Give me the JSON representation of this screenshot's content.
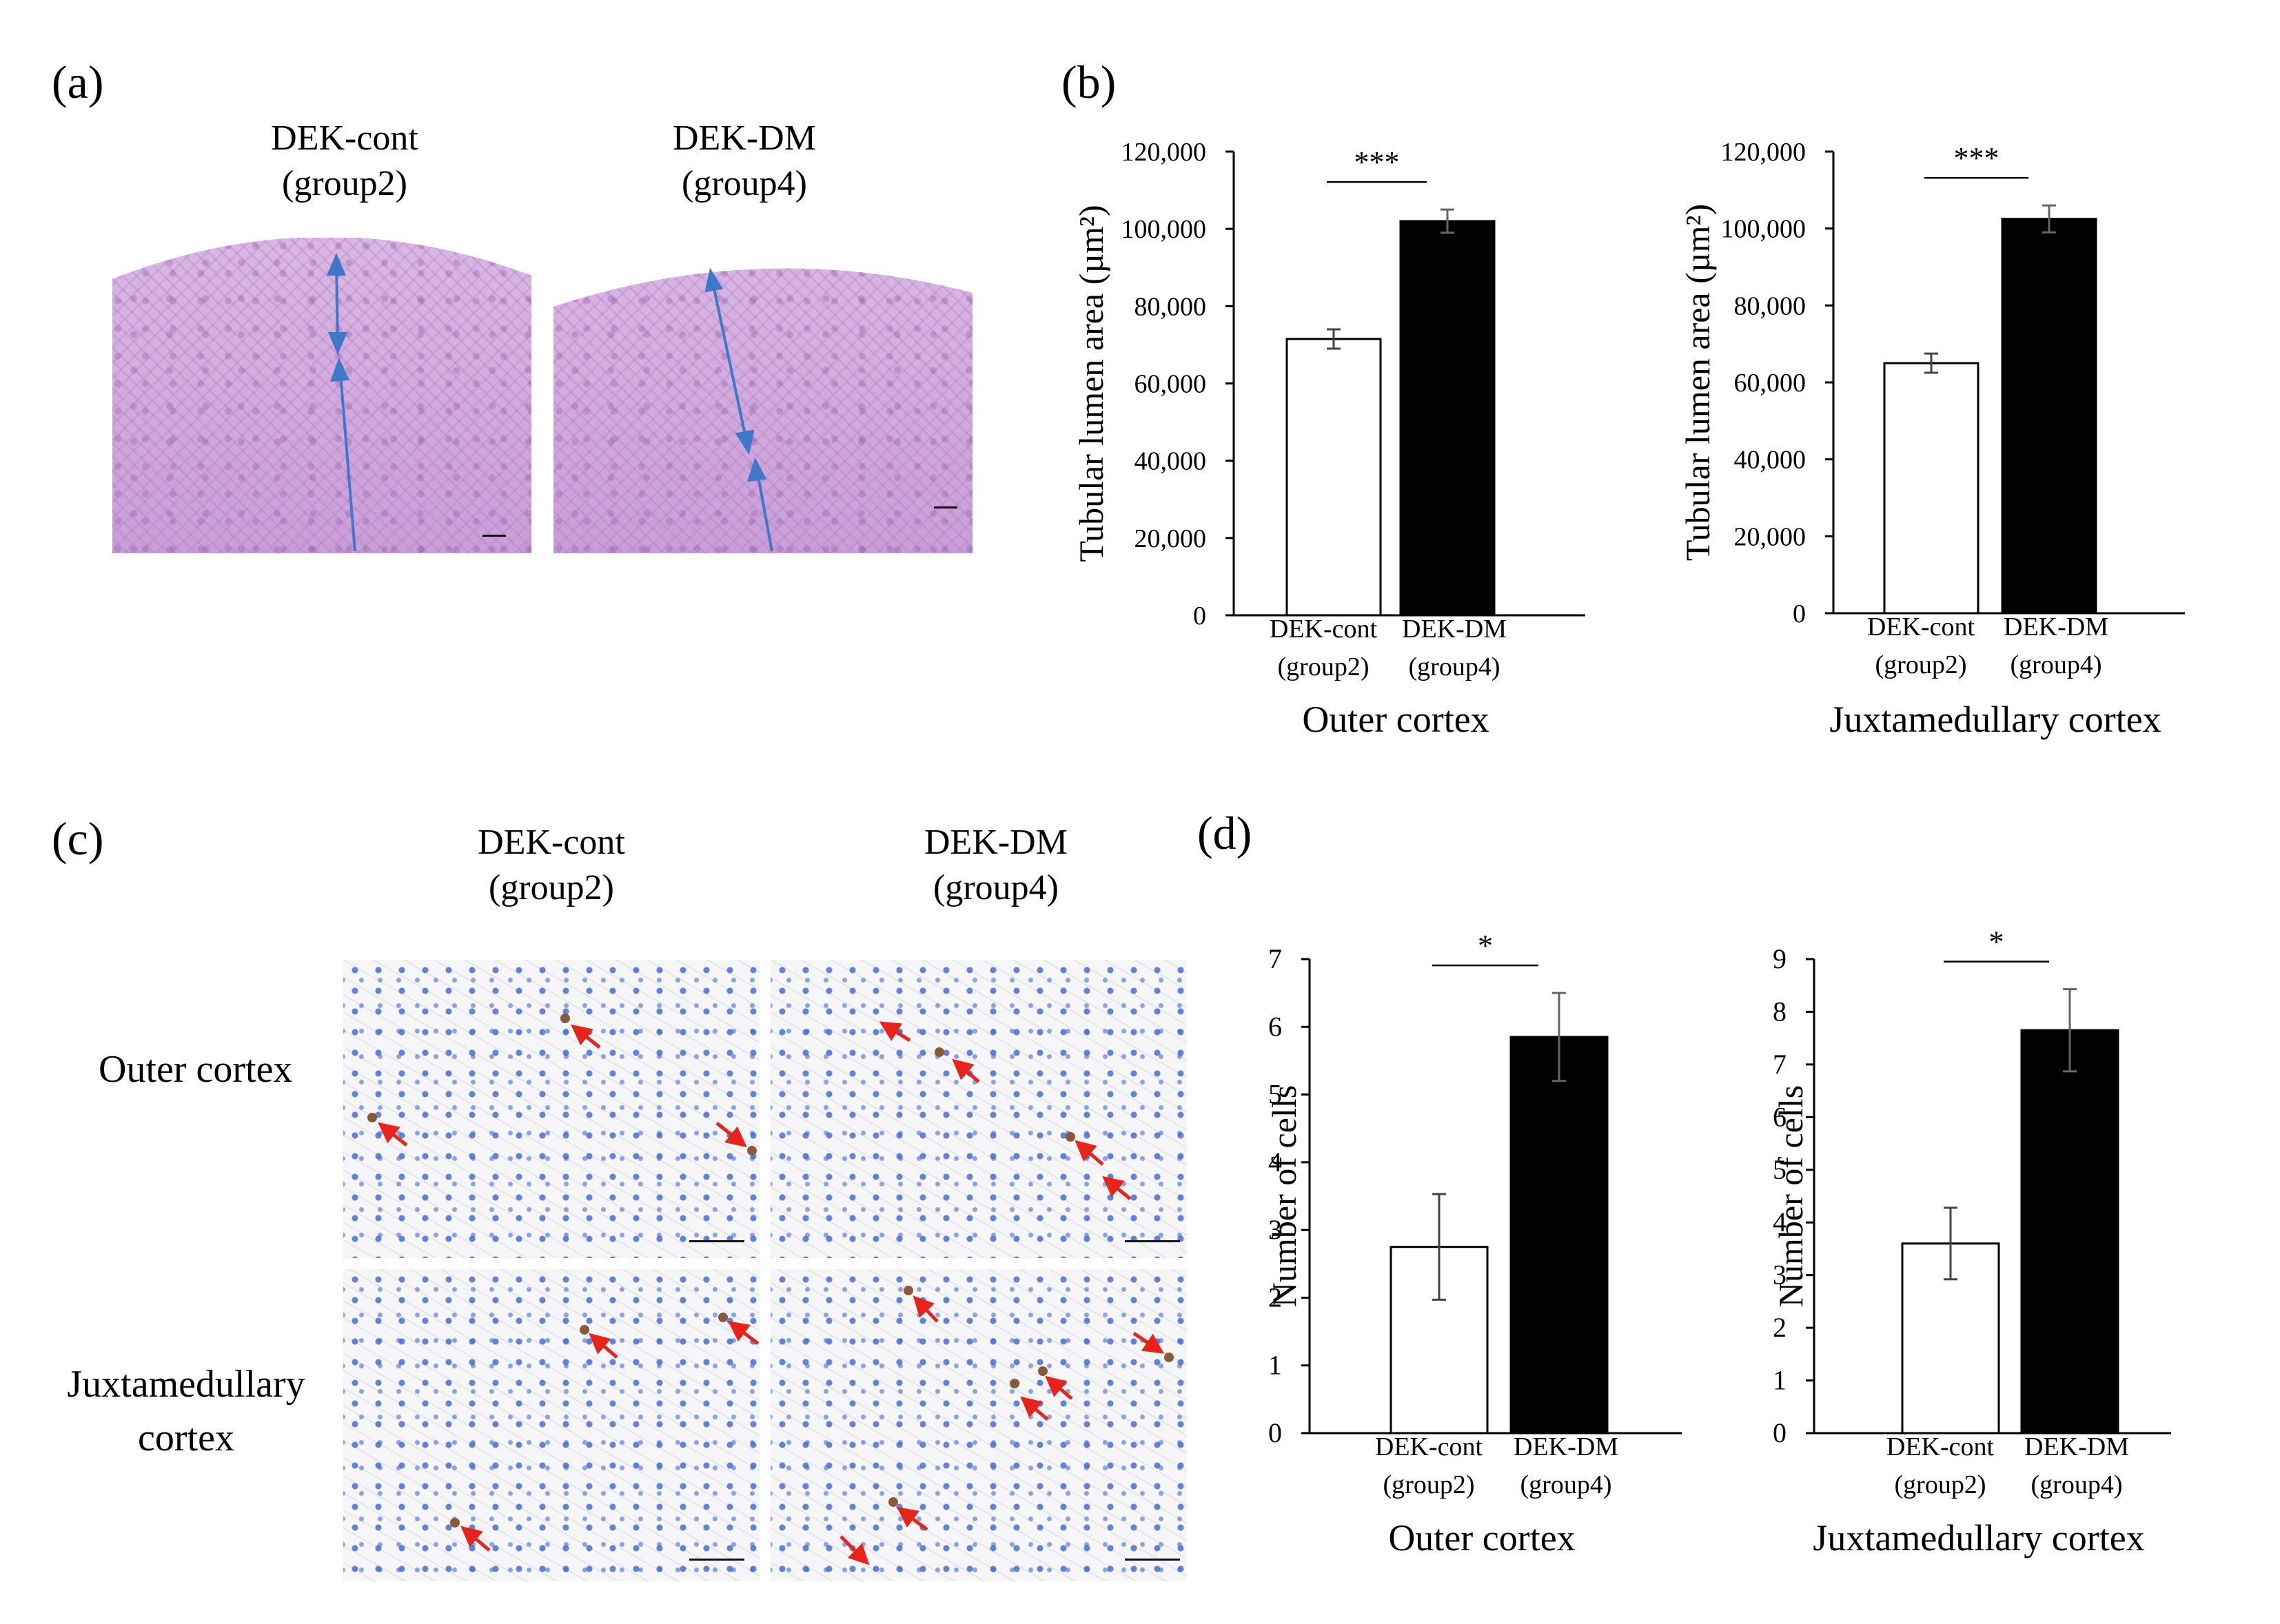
{
  "panels": {
    "a": "(a)",
    "b": "(b)",
    "c": "(c)",
    "d": "(d)"
  },
  "groups": {
    "cont_line1": "DEK-cont",
    "cont_line2": "(group2)",
    "dm_line1": "DEK-DM",
    "dm_line2": "(group4)"
  },
  "rows": {
    "outer": "Outer cortex",
    "juxta_line1": "Juxtamedullary",
    "juxta_line2": "cortex"
  },
  "colors": {
    "bar_cont": "#ffffff",
    "bar_dm": "#000000",
    "arrow_blue": "#3f78c8",
    "arrow_red": "#e8231c"
  },
  "chart_data": [
    {
      "type": "bar",
      "panel": "b",
      "title": "Outer cortex",
      "ylabel": "Tubular lumen area (µm²)",
      "ylim": [
        0,
        120000
      ],
      "yticks": [
        "0",
        "20,000",
        "40,000",
        "60,000",
        "80,000",
        "100,000",
        "120,000"
      ],
      "categories": [
        [
          "DEK-cont",
          "(group2)"
        ],
        [
          "DEK-DM",
          "(group4)"
        ]
      ],
      "values": [
        71500,
        102000
      ],
      "errors": [
        2500,
        3000
      ],
      "significance": "***"
    },
    {
      "type": "bar",
      "panel": "b",
      "title": "Juxtamedullary cortex",
      "ylabel": "Tubular lumen area (µm²)",
      "ylim": [
        0,
        120000
      ],
      "yticks": [
        "0",
        "20,000",
        "40,000",
        "60,000",
        "80,000",
        "100,000",
        "120,000"
      ],
      "categories": [
        [
          "DEK-cont",
          "(group2)"
        ],
        [
          "DEK-DM",
          "(group4)"
        ]
      ],
      "values": [
        65000,
        102500
      ],
      "errors": [
        2500,
        3500
      ],
      "significance": "***"
    },
    {
      "type": "bar",
      "panel": "d",
      "title": "Outer cortex",
      "ylabel": "Number of cells",
      "ylim": [
        0,
        7
      ],
      "yticks": [
        "0",
        "1",
        "2",
        "3",
        "4",
        "5",
        "6",
        "7"
      ],
      "categories": [
        [
          "DEK-cont",
          "(group2)"
        ],
        [
          "DEK-DM",
          "(group4)"
        ]
      ],
      "values": [
        2.75,
        5.85
      ],
      "errors": [
        0.78,
        0.65
      ],
      "significance": "*"
    },
    {
      "type": "bar",
      "panel": "d",
      "title": "Juxtamedullary cortex",
      "ylabel": "Number of cells",
      "ylim": [
        0,
        9
      ],
      "yticks": [
        "0",
        "1",
        "2",
        "3",
        "4",
        "5",
        "6",
        "7",
        "8",
        "9"
      ],
      "categories": [
        [
          "DEK-cont",
          "(group2)"
        ],
        [
          "DEK-DM",
          "(group4)"
        ]
      ],
      "values": [
        3.6,
        7.65
      ],
      "errors": [
        0.68,
        0.78
      ],
      "significance": "*"
    }
  ]
}
